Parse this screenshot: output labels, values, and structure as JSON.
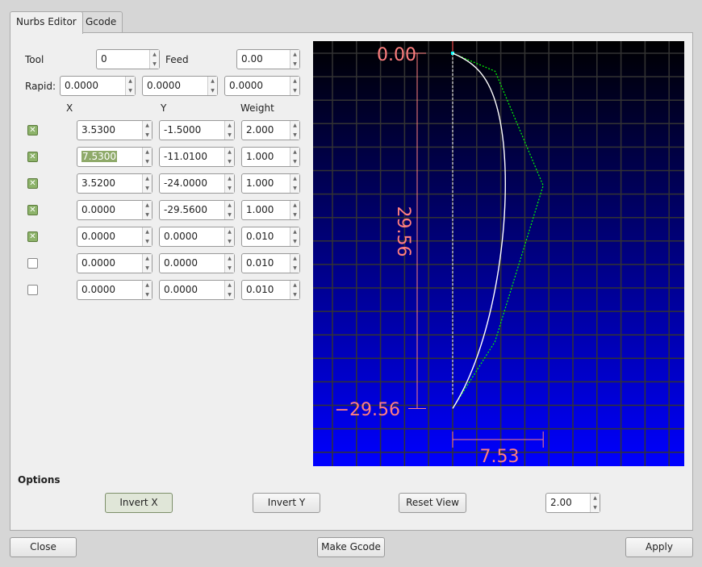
{
  "tabs": [
    {
      "label": "Nurbs Editor",
      "active": true
    },
    {
      "label": "Gcode",
      "active": false
    }
  ],
  "tool": {
    "label": "Tool",
    "value": "0"
  },
  "feed": {
    "label": "Feed",
    "value": "0.00"
  },
  "rapid": {
    "label": "Rapid:",
    "values": [
      "0.0000",
      "0.0000",
      "0.0000"
    ]
  },
  "columns": {
    "x": "X",
    "y": "Y",
    "weight": "Weight"
  },
  "points": [
    {
      "enabled": true,
      "x": "3.5300",
      "y": "-1.5000",
      "w": "2.000"
    },
    {
      "enabled": true,
      "x": "7.5300",
      "y": "-11.0100",
      "w": "1.000"
    },
    {
      "enabled": true,
      "x": "3.5200",
      "y": "-24.0000",
      "w": "1.000"
    },
    {
      "enabled": true,
      "x": "0.0000",
      "y": "-29.5600",
      "w": "1.000"
    },
    {
      "enabled": true,
      "x": "0.0000",
      "y": "0.0000",
      "w": "0.010"
    },
    {
      "enabled": false,
      "x": "0.0000",
      "y": "0.0000",
      "w": "0.010"
    },
    {
      "enabled": false,
      "x": "0.0000",
      "y": "0.0000",
      "w": "0.010"
    }
  ],
  "view": {
    "top_label": "0.00",
    "bottom_label": "−29.56",
    "height_label": "29.56",
    "width_label": "7.53",
    "colors": {
      "gradient_top": "#000000",
      "gradient_bottom": "#0000ff",
      "grid": "#333333",
      "dimension": "#ff7f7f",
      "curve": "#ffffff",
      "control_polygon": "#00ff00"
    }
  },
  "options": {
    "label": "Options",
    "invert_x": "Invert X",
    "invert_y": "Invert Y",
    "reset_view": "Reset View",
    "scale": "2.00"
  },
  "footer": {
    "close": "Close",
    "make_gcode": "Make Gcode",
    "apply": "Apply"
  }
}
